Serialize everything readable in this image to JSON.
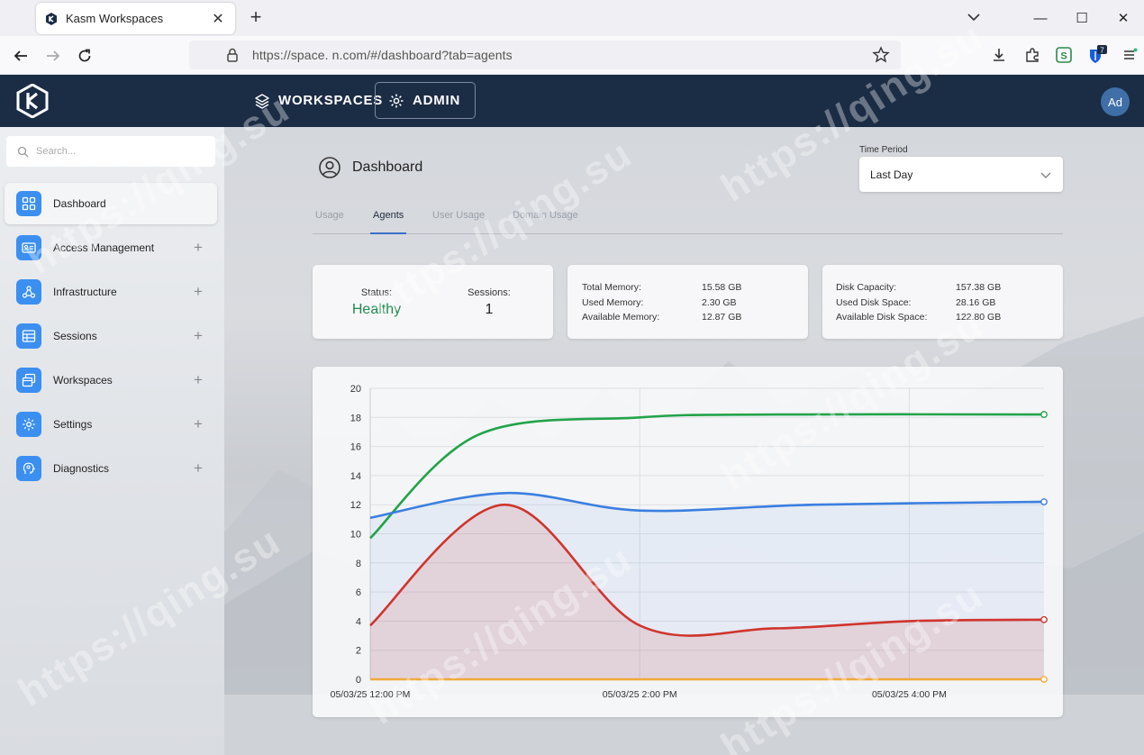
{
  "browser": {
    "tab_title": "Kasm Workspaces",
    "url": "https://space.            n.com/#/dashboard?tab=agents",
    "extension_badge": "7"
  },
  "header": {
    "nav": [
      {
        "label": "WORKSPACES",
        "icon": "layers-icon"
      },
      {
        "label": "ADMIN",
        "icon": "gear-icon"
      }
    ],
    "avatar_initials": "Ad"
  },
  "sidebar": {
    "search_placeholder": "Search...",
    "items": [
      {
        "label": "Dashboard",
        "icon": "grid-icon",
        "expandable": false
      },
      {
        "label": "Access Management",
        "icon": "id-card-icon",
        "expandable": true
      },
      {
        "label": "Infrastructure",
        "icon": "network-icon",
        "expandable": true
      },
      {
        "label": "Sessions",
        "icon": "table-icon",
        "expandable": true
      },
      {
        "label": "Workspaces",
        "icon": "windows-icon",
        "expandable": true
      },
      {
        "label": "Settings",
        "icon": "gear-icon",
        "expandable": true
      },
      {
        "label": "Diagnostics",
        "icon": "head-icon",
        "expandable": true
      }
    ]
  },
  "main": {
    "title": "Dashboard",
    "time_period_label": "Time Period",
    "time_period_value": "Last Day",
    "tabs": [
      "Usage",
      "Agents",
      "User Usage",
      "Domain Usage"
    ],
    "active_tab": "Agents",
    "status": {
      "label": "Status:",
      "value": "Healthy"
    },
    "sessions": {
      "label": "Sessions:",
      "value": "1"
    },
    "memory": [
      {
        "label": "Total Memory:",
        "value": "15.58 GB"
      },
      {
        "label": "Used Memory:",
        "value": "2.30 GB"
      },
      {
        "label": "Available Memory:",
        "value": "12.87 GB"
      }
    ],
    "disk": [
      {
        "label": "Disk Capacity:",
        "value": "157.38 GB"
      },
      {
        "label": "Used Disk Space:",
        "value": "28.16 GB"
      },
      {
        "label": "Available Disk Space:",
        "value": "122.80 GB"
      }
    ]
  },
  "chart_data": {
    "type": "line",
    "ylim": [
      0,
      20
    ],
    "yticks": [
      0,
      2,
      4,
      6,
      8,
      10,
      12,
      14,
      16,
      18,
      20
    ],
    "x_tick_labels": [
      "05/03/25 12:00 PM",
      "05/03/25 2:00 PM",
      "05/03/25 4:00 PM"
    ],
    "grid": true,
    "legend": "none",
    "series": [
      {
        "color": "#22a34a",
        "fill": false,
        "points": [
          [
            0,
            9.7
          ],
          [
            0.8,
            16.8
          ],
          [
            2.0,
            18.0
          ],
          [
            3.0,
            18.2
          ],
          [
            5.0,
            18.2
          ]
        ]
      },
      {
        "color": "#3b7fe0",
        "fill": true,
        "points": [
          [
            0,
            11.1
          ],
          [
            1.0,
            12.8
          ],
          [
            2.0,
            11.6
          ],
          [
            3.3,
            12.0
          ],
          [
            5.0,
            12.2
          ]
        ]
      },
      {
        "color": "#d0342c",
        "fill": true,
        "points": [
          [
            0,
            3.7
          ],
          [
            1.0,
            12.0
          ],
          [
            2.0,
            3.7
          ],
          [
            3.0,
            3.5
          ],
          [
            4.0,
            4.0
          ],
          [
            5.0,
            4.1
          ]
        ]
      },
      {
        "color": "#f0a93a",
        "fill": false,
        "points": [
          [
            0,
            0
          ],
          [
            5.0,
            0
          ]
        ]
      }
    ]
  },
  "watermark": "https://qing.su"
}
